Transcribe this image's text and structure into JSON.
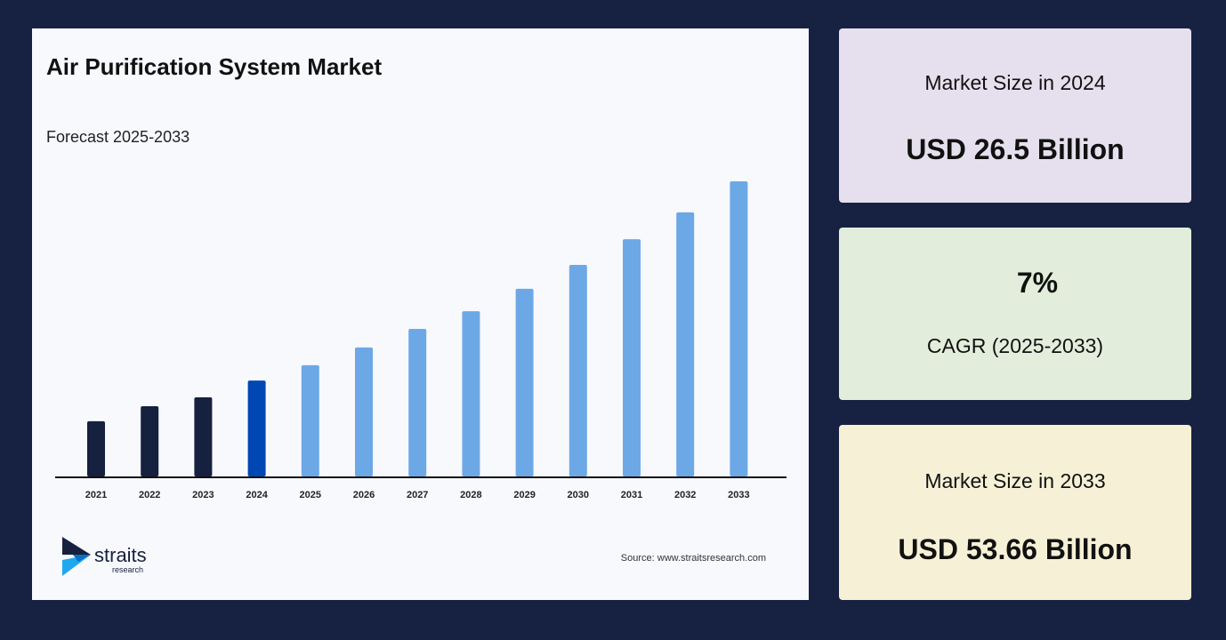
{
  "title": "Air Purification System Market",
  "subtitle": "Forecast 2025-2033",
  "source": "Source: www.straitsresearch.com",
  "logo": {
    "name": "straits",
    "tagline": "research"
  },
  "cards": [
    {
      "label": "Market Size in 2024",
      "value": "USD 26.5 Billion",
      "bg": "#e6e0ee"
    },
    {
      "label": "CAGR (2025-2033)",
      "value": "7%",
      "bg": "#e2eedb"
    },
    {
      "label": "Market Size in 2033",
      "value": "USD 53.66 Billion",
      "bg": "#f6f0d6"
    }
  ],
  "colors": {
    "historical": "#16203f",
    "base_year": "#0047b3",
    "forecast": "#6da8e6",
    "background": "#172242"
  },
  "chart_data": {
    "type": "bar",
    "title": "Air Purification System Market",
    "subtitle": "Forecast 2025-2033",
    "categories": [
      "2021",
      "2022",
      "2023",
      "2024",
      "2025",
      "2026",
      "2027",
      "2028",
      "2029",
      "2030",
      "2031",
      "2032",
      "2033"
    ],
    "values": [
      18.7,
      23.8,
      26.8,
      32.5,
      37.7,
      43.7,
      50.0,
      56.0,
      63.6,
      71.7,
      80.4,
      89.5,
      100
    ],
    "value_note": "relative bar height index (no y-axis printed)",
    "bar_groups": [
      "historical",
      "historical",
      "historical",
      "base_year",
      "forecast",
      "forecast",
      "forecast",
      "forecast",
      "forecast",
      "forecast",
      "forecast",
      "forecast",
      "forecast"
    ],
    "ylim": [
      0,
      100
    ],
    "grid": false,
    "xlabel": "",
    "ylabel": ""
  }
}
